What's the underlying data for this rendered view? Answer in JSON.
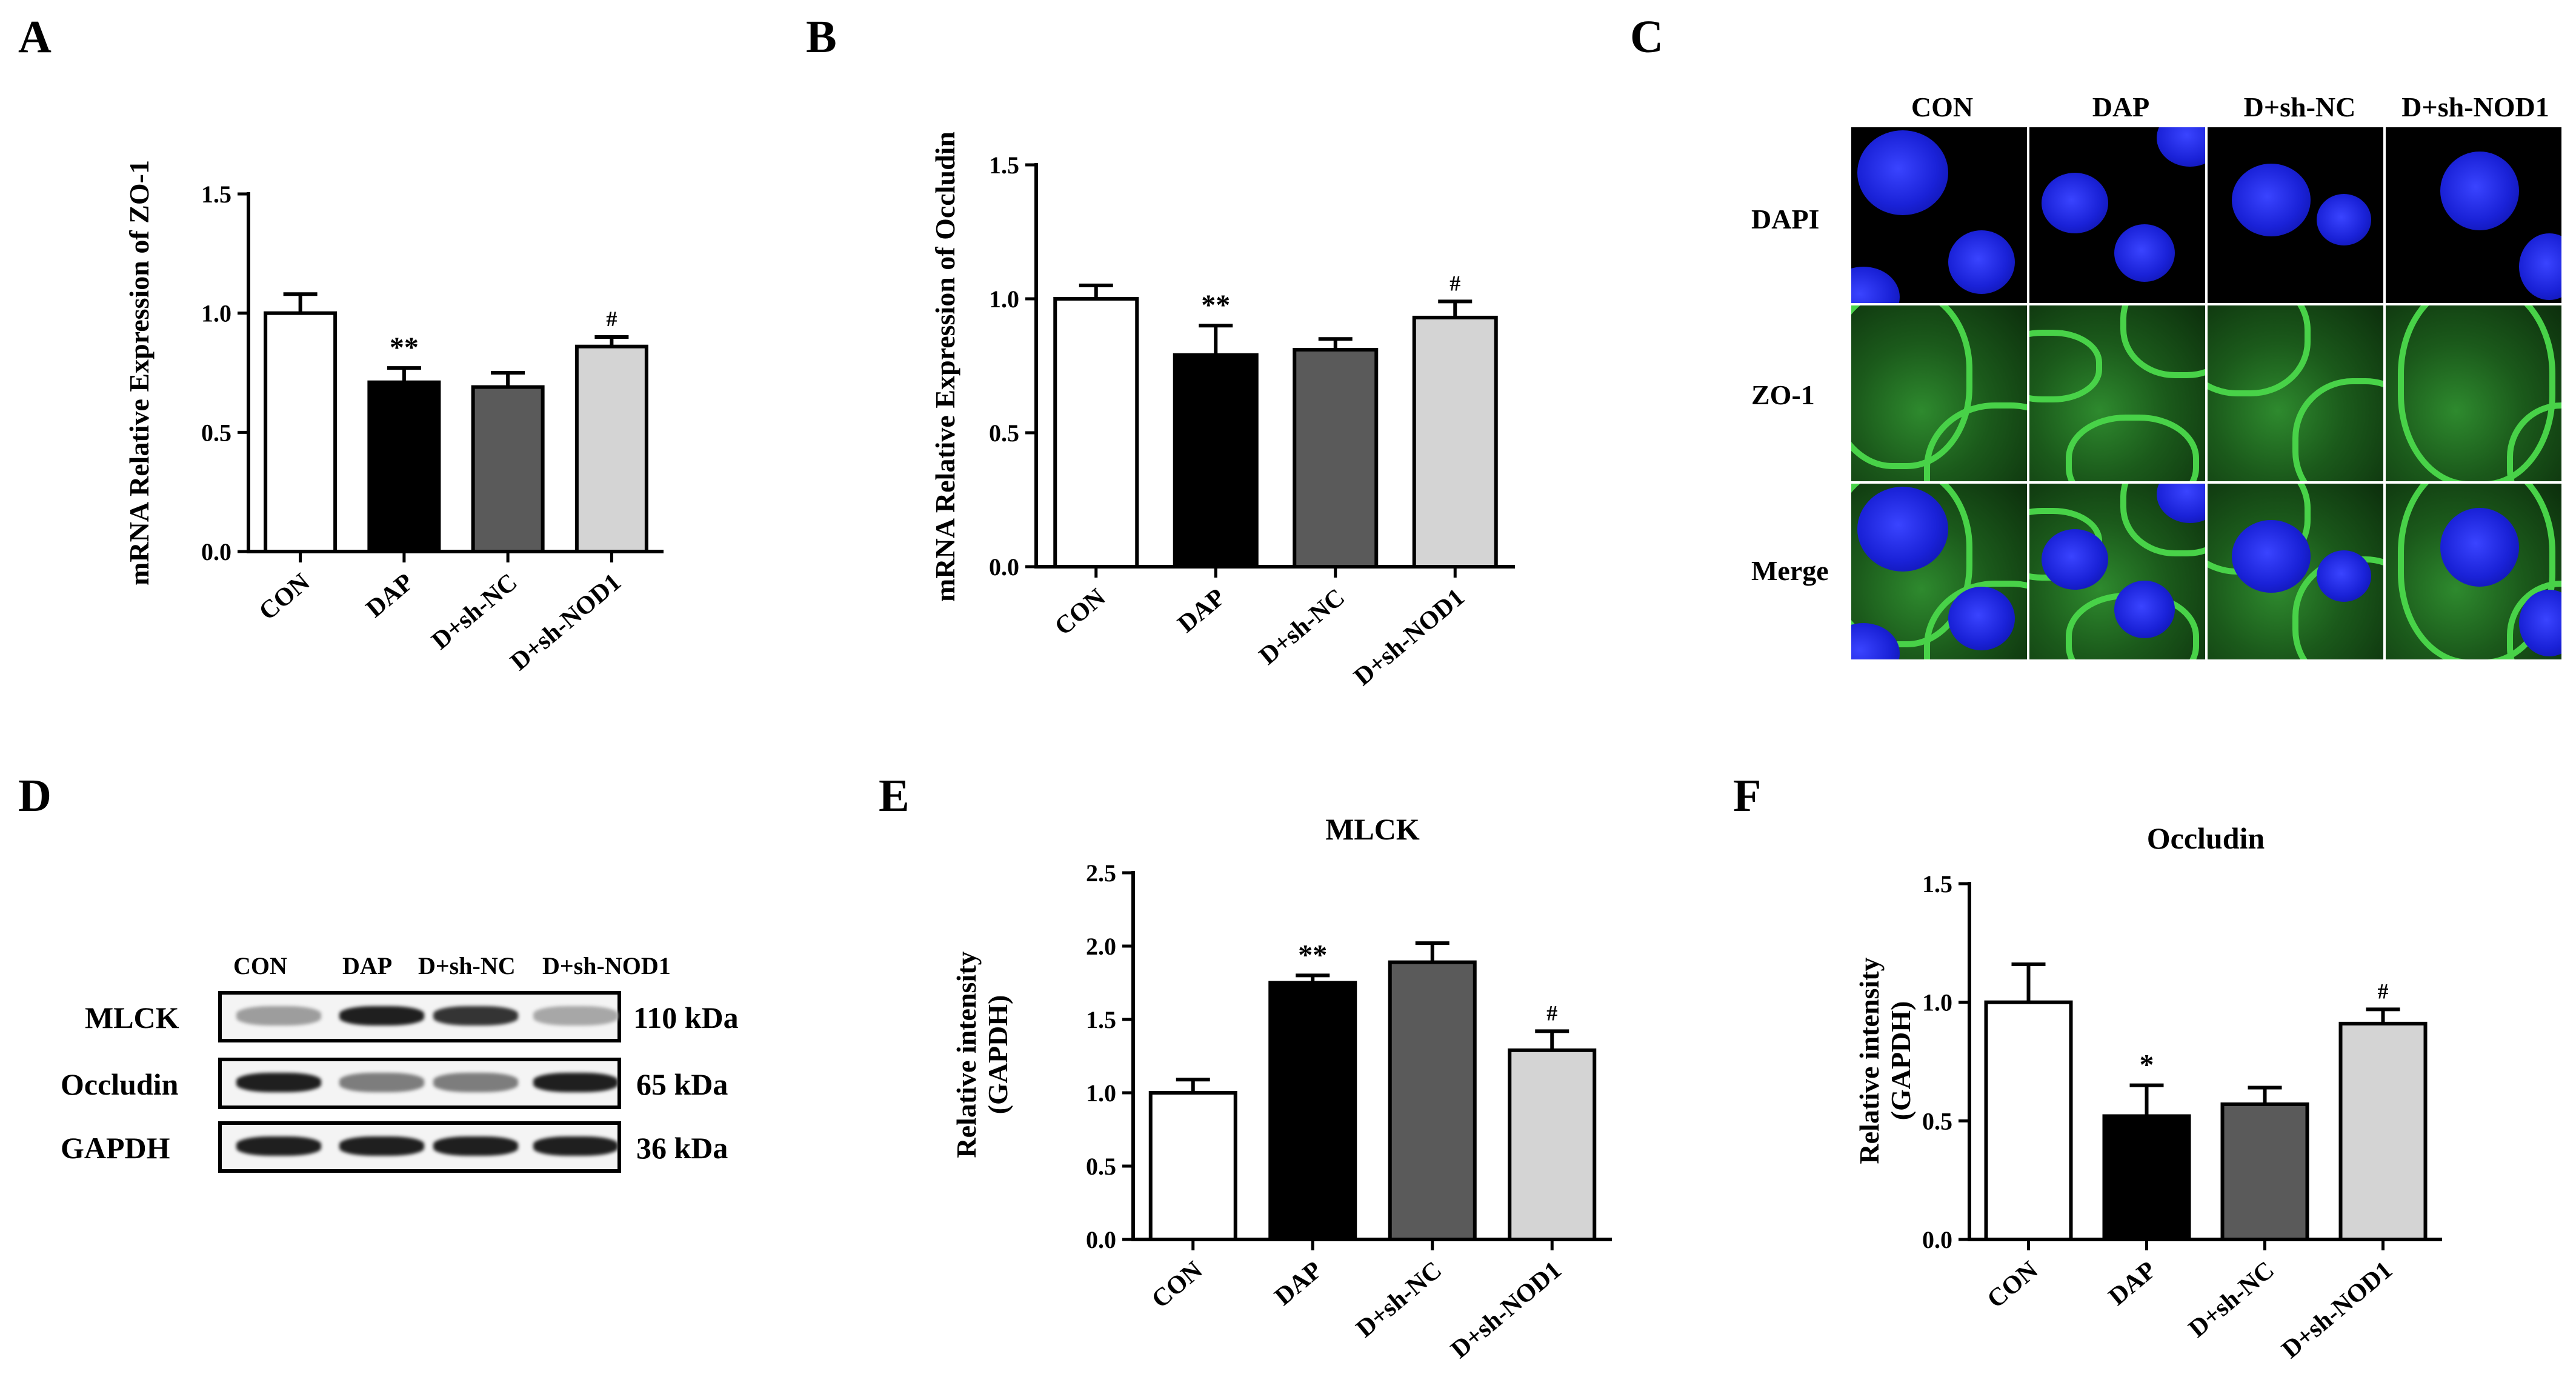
{
  "panels": {
    "A": "A",
    "B": "B",
    "C": "C",
    "D": "D",
    "E": "E",
    "F": "F"
  },
  "colors": {
    "CON": "#ffffff",
    "DAP": "#000000",
    "D+sh-NC": "#5a5a5a",
    "D+sh-NOD1": "#d4d4d4"
  },
  "chart_data": [
    {
      "panel": "A",
      "type": "bar",
      "categories": [
        "CON",
        "DAP",
        "D+sh-NC",
        "D+sh-NOD1"
      ],
      "values": [
        1.0,
        0.71,
        0.69,
        0.86
      ],
      "errors": [
        0.08,
        0.06,
        0.06,
        0.04
      ],
      "annotations": [
        "",
        "**",
        "",
        "#"
      ],
      "title": "",
      "xlabel": "",
      "ylabel": "mRNA Relative Expression of ZO-1",
      "ylim": [
        0,
        1.5
      ],
      "yticks": [
        "0.0",
        "0.5",
        "1.0",
        "1.5"
      ],
      "grid": false
    },
    {
      "panel": "B",
      "type": "bar",
      "categories": [
        "CON",
        "DAP",
        "D+sh-NC",
        "D+sh-NOD1"
      ],
      "values": [
        1.0,
        0.79,
        0.81,
        0.93
      ],
      "errors": [
        0.05,
        0.11,
        0.04,
        0.06
      ],
      "annotations": [
        "",
        "**",
        "",
        "#"
      ],
      "title": "",
      "xlabel": "",
      "ylabel": "mRNA Relative Expression of Occludin",
      "ylim": [
        0,
        1.5
      ],
      "yticks": [
        "0.0",
        "0.5",
        "1.0",
        "1.5"
      ],
      "grid": false
    },
    {
      "panel": "E",
      "type": "bar",
      "categories": [
        "CON",
        "DAP",
        "D+sh-NC",
        "D+sh-NOD1"
      ],
      "values": [
        1.0,
        1.75,
        1.89,
        1.29
      ],
      "errors": [
        0.09,
        0.05,
        0.13,
        0.13
      ],
      "annotations": [
        "",
        "**",
        "",
        "#"
      ],
      "title": "MLCK",
      "xlabel": "",
      "ylabel": "Relative intensity (GAPDH)",
      "ylabel_lines": [
        "Relative intensity",
        "(GAPDH)"
      ],
      "ylim": [
        0,
        2.5
      ],
      "yticks": [
        "0.0",
        "0.5",
        "1.0",
        "1.5",
        "2.0",
        "2.5"
      ],
      "grid": false
    },
    {
      "panel": "F",
      "type": "bar",
      "categories": [
        "CON",
        "DAP",
        "D+sh-NC",
        "D+sh-NOD1"
      ],
      "values": [
        1.0,
        0.52,
        0.57,
        0.91
      ],
      "errors": [
        0.16,
        0.13,
        0.07,
        0.06
      ],
      "annotations": [
        "",
        "*",
        "",
        "#"
      ],
      "title": "Occludin",
      "xlabel": "",
      "ylabel": "Relative intensity (GAPDH)",
      "ylabel_lines": [
        "Relative intensity",
        "(GAPDH)"
      ],
      "ylim": [
        0,
        1.5
      ],
      "yticks": [
        "0.0",
        "0.5",
        "1.0",
        "1.5"
      ],
      "grid": false
    }
  ],
  "immunofluorescence": {
    "columns": [
      "CON",
      "DAP",
      "D+sh-NC",
      "D+sh-NOD1"
    ],
    "rows": [
      "DAPI",
      "ZO-1",
      "Merge"
    ]
  },
  "western_blot": {
    "lanes": [
      "CON",
      "DAP",
      "D+sh-NC",
      "D+sh-NOD1"
    ],
    "proteins": [
      {
        "name": "MLCK",
        "size": "110 kDa",
        "intensity": [
          0.35,
          0.95,
          0.85,
          0.3
        ]
      },
      {
        "name": "Occludin",
        "size": "65 kDa",
        "intensity": [
          0.95,
          0.5,
          0.5,
          0.95
        ]
      },
      {
        "name": "GAPDH",
        "size": "36 kDa",
        "intensity": [
          0.95,
          0.95,
          0.95,
          0.95
        ]
      }
    ]
  }
}
